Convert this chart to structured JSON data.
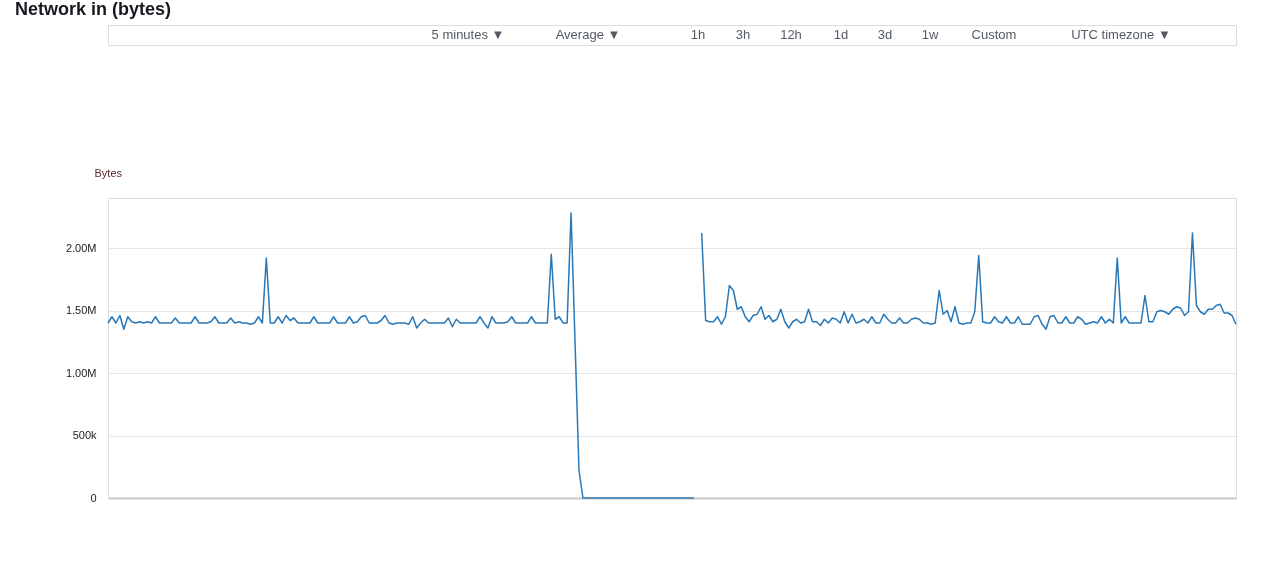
{
  "chart_data": {
    "type": "line",
    "title": "Network in (bytes)",
    "ylabel": "Bytes",
    "annotations": [
      "5 minutes ▼",
      "Average ▼",
      "1h",
      "3h",
      "12h",
      "1d",
      "3d",
      "1w",
      "Custom",
      "UTC timezone ▼"
    ],
    "categories": [
      null,
      null,
      null,
      null,
      null,
      null,
      null,
      null,
      null,
      null,
      null,
      null,
      null,
      null,
      null,
      null,
      null,
      null,
      null,
      null,
      null,
      null,
      null,
      null,
      null,
      null,
      null,
      null,
      null,
      null,
      null,
      null,
      null,
      null,
      null,
      null,
      null,
      null,
      null,
      null,
      null,
      null,
      null,
      null,
      null,
      null,
      null,
      null,
      null,
      null,
      null,
      null,
      null,
      null,
      null,
      null,
      null,
      null,
      null,
      null,
      null,
      null,
      null,
      null,
      null,
      null,
      null,
      null,
      null,
      null,
      null,
      null,
      null,
      null,
      null,
      null,
      null,
      null,
      null,
      null,
      null,
      null,
      null,
      null,
      null,
      null,
      null,
      null,
      null,
      null,
      null,
      null,
      null,
      null,
      null,
      null,
      null,
      null,
      null,
      null,
      null,
      null,
      null,
      null,
      null,
      null,
      null,
      null,
      null,
      null,
      null,
      null,
      null,
      null,
      null,
      null,
      null,
      null,
      null,
      null,
      null,
      null,
      null,
      null,
      null,
      null,
      null,
      null,
      null,
      null,
      null,
      null,
      null,
      null,
      null,
      null,
      null,
      null,
      null,
      null,
      null,
      null,
      null,
      null,
      null,
      null,
      null,
      null,
      null,
      null,
      null,
      null,
      null,
      null,
      null,
      null,
      null,
      null,
      null,
      null,
      null,
      null,
      null,
      null,
      null,
      null,
      null,
      null,
      null,
      null,
      null,
      null,
      null,
      null,
      null,
      null,
      null,
      null,
      null,
      null,
      null,
      null,
      null,
      null,
      null,
      null,
      null,
      null,
      null,
      null,
      null,
      null,
      null,
      null,
      null,
      null,
      null,
      null,
      null,
      null,
      null,
      null,
      null,
      null,
      null,
      null,
      null,
      null,
      null,
      null,
      null,
      null,
      null,
      null,
      null,
      null,
      null,
      null,
      null,
      null,
      null,
      null,
      null,
      null,
      null,
      null,
      null,
      null,
      null,
      null,
      null,
      null,
      null,
      null,
      null,
      null,
      null,
      null,
      null,
      null,
      null,
      null,
      null,
      null,
      null,
      null,
      null,
      null,
      null,
      null,
      null,
      null,
      null,
      null,
      null,
      null,
      null,
      null,
      null,
      null,
      null,
      null,
      null,
      null,
      null,
      null,
      null,
      null,
      null,
      null,
      null,
      null,
      null,
      null,
      null,
      null,
      null,
      null,
      null,
      null,
      null,
      null,
      null,
      null,
      null,
      null
    ],
    "series": [
      {
        "color": "#2878b8",
        "values": [
          1400000,
          1450000,
          1400000,
          1460000,
          1350000,
          1450000,
          1410000,
          1400000,
          1410000,
          1400000,
          1410000,
          1400000,
          1450000,
          1400000,
          1400000,
          1400000,
          1400000,
          1440000,
          1400000,
          1400000,
          1400000,
          1400000,
          1450000,
          1400000,
          1400000,
          1400000,
          1410000,
          1450000,
          1400000,
          1400000,
          1400000,
          1440000,
          1400000,
          1410000,
          1400000,
          1400000,
          1390000,
          1400000,
          1450000,
          1400000,
          1920000,
          1400000,
          1400000,
          1450000,
          1400000,
          1460000,
          1420000,
          1440000,
          1400000,
          1400000,
          1400000,
          1400000,
          1450000,
          1400000,
          1400000,
          1400000,
          1400000,
          1450000,
          1400000,
          1400000,
          1400000,
          1450000,
          1400000,
          1410000,
          1450000,
          1460000,
          1400000,
          1400000,
          1400000,
          1420000,
          1460000,
          1400000,
          1390000,
          1400000,
          1400000,
          1400000,
          1390000,
          1450000,
          1360000,
          1400000,
          1430000,
          1400000,
          1400000,
          1400000,
          1400000,
          1400000,
          1440000,
          1370000,
          1430000,
          1400000,
          1400000,
          1400000,
          1400000,
          1400000,
          1450000,
          1400000,
          1360000,
          1450000,
          1400000,
          1400000,
          1400000,
          1410000,
          1450000,
          1400000,
          1400000,
          1400000,
          1400000,
          1450000,
          1400000,
          1400000,
          1400000,
          1400000,
          1950000,
          1430000,
          1450000,
          1400000,
          1400000,
          2280000,
          1250000,
          220000,
          0,
          0,
          0,
          0,
          0,
          0,
          0,
          0,
          0,
          0,
          0,
          0,
          0,
          0,
          0,
          0,
          0,
          0,
          0,
          0,
          0,
          0,
          0,
          0,
          0,
          0,
          0,
          0,
          0,
          null,
          null,
          null,
          null,
          null,
          null,
          null,
          null,
          null,
          null,
          null,
          null,
          null,
          null,
          null,
          null,
          null,
          null,
          null,
          null,
          null,
          null,
          null,
          null,
          null,
          null,
          null,
          null,
          null,
          null,
          null,
          null,
          null,
          null,
          null,
          null,
          null,
          null,
          null,
          null,
          null,
          null,
          null,
          null,
          null,
          null,
          null,
          null,
          null,
          null,
          null,
          null,
          null,
          null,
          null,
          null,
          null,
          null,
          null,
          null,
          null,
          null,
          null,
          null,
          null,
          null,
          null,
          null,
          null,
          null,
          null,
          null,
          null,
          null,
          null,
          null,
          null,
          null,
          null,
          null,
          null,
          null,
          null,
          null,
          null,
          null,
          null,
          null,
          null,
          null,
          null,
          null,
          null,
          null,
          null,
          null,
          null,
          null,
          null,
          null,
          null,
          null,
          null,
          null,
          null,
          null,
          null,
          null,
          null,
          null,
          null,
          null,
          null,
          null,
          null,
          null,
          null,
          null,
          null,
          null,
          null,
          null,
          null,
          null,
          null,
          null,
          null,
          null,
          null,
          null,
          null,
          null,
          null,
          null,
          null,
          null,
          null
        ]
      },
      {
        "color": "#2878b8",
        "values": [
          null,
          null,
          null,
          null,
          null,
          null,
          null,
          null,
          null,
          null,
          null,
          null,
          null,
          null,
          null,
          null,
          null,
          null,
          null,
          null,
          null,
          null,
          null,
          null,
          null,
          null,
          null,
          null,
          null,
          null,
          null,
          null,
          null,
          null,
          null,
          null,
          null,
          null,
          null,
          null,
          null,
          null,
          null,
          null,
          null,
          null,
          null,
          null,
          null,
          null,
          null,
          null,
          null,
          null,
          null,
          null,
          null,
          null,
          null,
          null,
          null,
          null,
          null,
          null,
          null,
          null,
          null,
          null,
          null,
          null,
          null,
          null,
          null,
          null,
          null,
          null,
          null,
          null,
          null,
          null,
          null,
          null,
          null,
          null,
          null,
          null,
          null,
          null,
          null,
          null,
          null,
          null,
          null,
          null,
          null,
          null,
          null,
          null,
          null,
          null,
          null,
          null,
          null,
          null,
          null,
          null,
          null,
          null,
          null,
          null,
          null,
          null,
          null,
          null,
          null,
          null,
          null,
          null,
          null,
          null,
          null,
          null,
          null,
          null,
          null,
          null,
          null,
          null,
          null,
          null,
          null,
          null,
          null,
          null,
          null,
          null,
          null,
          null,
          null,
          null,
          null,
          null,
          null,
          null,
          null,
          null,
          null,
          null,
          null,
          null,
          2120000,
          1420000,
          1410000,
          1410000,
          1450000,
          1390000,
          1450000,
          1700000,
          1660000,
          1510000,
          1530000,
          1450000,
          1410000,
          1460000,
          1470000,
          1530000,
          1430000,
          1460000,
          1410000,
          1430000,
          1510000,
          1410000,
          1360000,
          1410000,
          1430000,
          1400000,
          1410000,
          1510000,
          1410000,
          1410000,
          1380000,
          1430000,
          1400000,
          1440000,
          1430000,
          1400000,
          1490000,
          1400000,
          1470000,
          1400000,
          1410000,
          1430000,
          1400000,
          1450000,
          1400000,
          1400000,
          1470000,
          1430000,
          1400000,
          1400000,
          1440000,
          1400000,
          1400000,
          1430000,
          1440000,
          1430000,
          1400000,
          1400000,
          1390000,
          1400000,
          1660000,
          1470000,
          1500000,
          1410000,
          1530000,
          1400000,
          1390000,
          1400000,
          1400000,
          1490000,
          1940000,
          1410000,
          1400000,
          1400000,
          1450000,
          1410000,
          1400000,
          1450000,
          1400000,
          1400000,
          1450000,
          1390000,
          1390000,
          1390000,
          1450000,
          1460000,
          1390000,
          1350000,
          1450000,
          1460000,
          1400000,
          1400000,
          1450000,
          1400000,
          1400000,
          1450000,
          1430000,
          1390000,
          1400000,
          1410000,
          1400000,
          1450000,
          1400000,
          1430000,
          1400000,
          1920000,
          1400000,
          1450000,
          1400000,
          1400000,
          1400000,
          1400000,
          1620000,
          1410000,
          1410000,
          1490000,
          1500000,
          1490000,
          1470000,
          1510000,
          1530000,
          1520000,
          1460000,
          1490000,
          2120000,
          1540000,
          1490000,
          1470000,
          1510000,
          1510000,
          1540000,
          1550000,
          1480000,
          1480000,
          1460000,
          1390000
        ]
      }
    ],
    "ylim": [
      0,
      2400000
    ],
    "yticks": [
      {
        "value": 0,
        "label": "0"
      },
      {
        "value": 500000,
        "label": "500k"
      },
      {
        "value": 1000000,
        "label": "1.00M"
      },
      {
        "value": 1500000,
        "label": "1.50M"
      },
      {
        "value": 2000000,
        "label": "2.00M"
      }
    ],
    "grid": "y",
    "tick_labels": "y",
    "legend": false,
    "marker": "none",
    "line_style": "solid"
  }
}
